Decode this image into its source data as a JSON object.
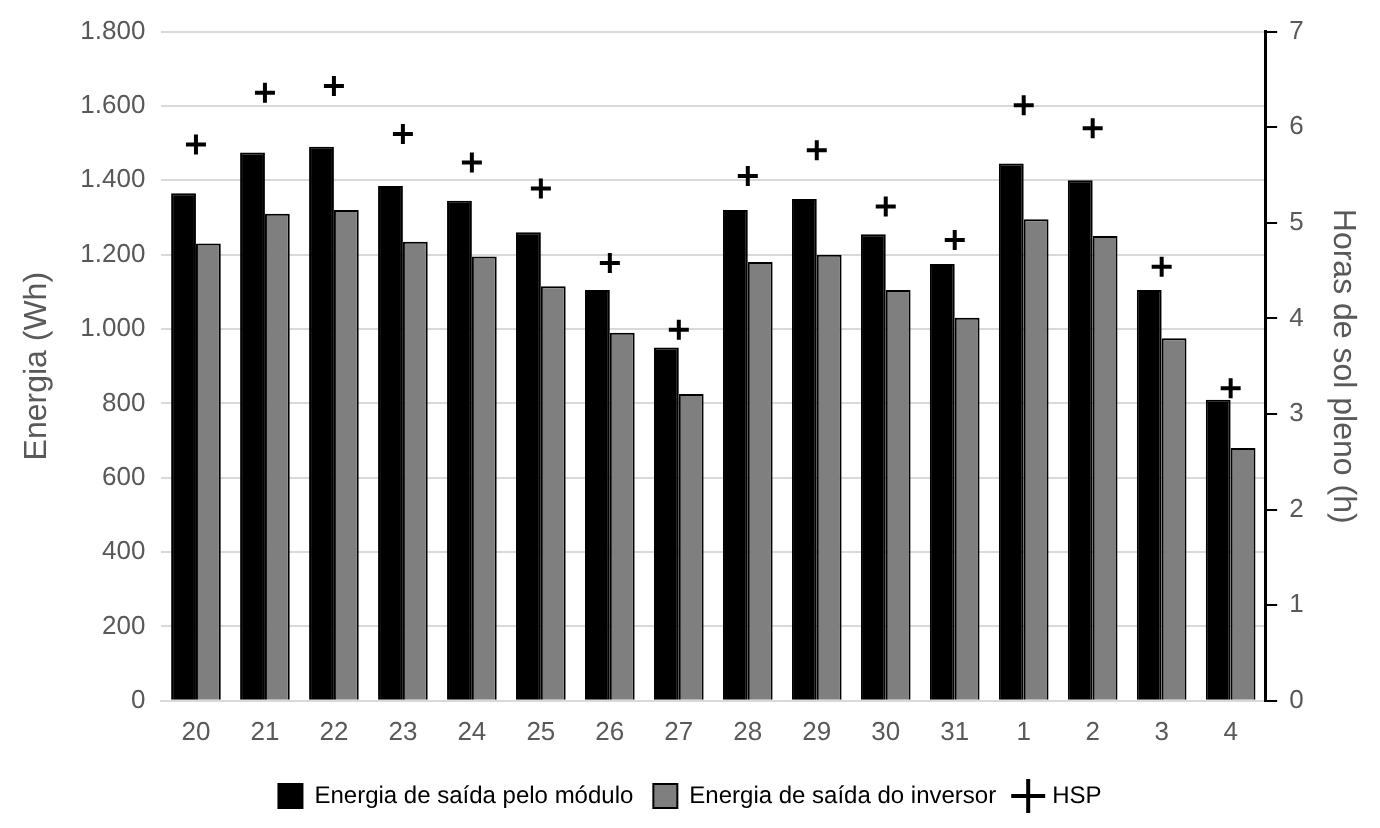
{
  "chart_data": {
    "type": "bar",
    "ylabel": "Energia (Wh)",
    "y2label": "Horas de sol pleno (h)",
    "categories": [
      "20",
      "21",
      "22",
      "23",
      "24",
      "25",
      "26",
      "27",
      "28",
      "29",
      "30",
      "31",
      "1",
      "2",
      "3",
      "4"
    ],
    "series": [
      {
        "name": "Energia de saída pelo módulo",
        "color": "#000000",
        "values": [
          1365,
          1475,
          1490,
          1385,
          1345,
          1260,
          1105,
          950,
          1320,
          1350,
          1255,
          1175,
          1445,
          1400,
          1105,
          810
        ]
      },
      {
        "name": "Energia de saída do inversor",
        "color": "#7f7f7f",
        "values": [
          1230,
          1310,
          1320,
          1235,
          1195,
          1115,
          990,
          825,
          1180,
          1200,
          1105,
          1030,
          1295,
          1250,
          975,
          680
        ]
      },
      {
        "name": "HSP",
        "type": "scatter",
        "axis": "y2",
        "color": "#000000",
        "marker": "cross",
        "values": [
          5.82,
          6.36,
          6.43,
          5.93,
          5.63,
          5.36,
          4.58,
          3.88,
          5.49,
          5.76,
          5.17,
          4.82,
          6.23,
          5.99,
          4.54,
          3.27
        ]
      }
    ],
    "ylim": [
      0,
      1800
    ],
    "yticks": [
      0,
      200,
      400,
      600,
      800,
      {
        "value": 1000,
        "label": "1.000"
      },
      {
        "value": 1200,
        "label": "1.200"
      },
      {
        "value": 1400,
        "label": "1.400"
      },
      {
        "value": 1600,
        "label": "1.600"
      },
      {
        "value": 1800,
        "label": "1.800"
      }
    ],
    "y2lim": [
      0,
      7
    ],
    "y2ticks": [
      0,
      1,
      2,
      3,
      4,
      5,
      6,
      7
    ],
    "grid": "y",
    "legend": "bottom"
  }
}
